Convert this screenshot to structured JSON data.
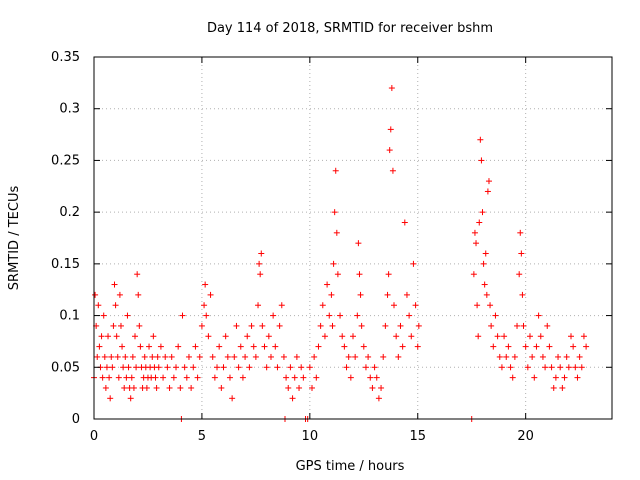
{
  "chart_data": {
    "type": "scatter",
    "title": "Day 114 of 2018, SRMTID for receiver bshm",
    "xlabel": "GPS time / hours",
    "ylabel": "SRMTID / TECUs",
    "xlim": [
      0,
      24
    ],
    "ylim": [
      0,
      0.35
    ],
    "xticks": [
      0,
      5,
      10,
      15,
      20
    ],
    "xtick_labels": [
      "0",
      "5",
      "10",
      "15",
      "20"
    ],
    "yticks": [
      0,
      0.05,
      0.1,
      0.15,
      0.2,
      0.25,
      0.3,
      0.35
    ],
    "ytick_labels": [
      "0",
      "0.05",
      "0.1",
      "0.15",
      "0.2",
      "0.25",
      "0.3",
      "0.35"
    ],
    "grid": true,
    "marker": "+",
    "series": [
      {
        "name": "SRMTID",
        "color": "#ff0000",
        "points": [
          [
            0.0,
            0.04
          ],
          [
            0.05,
            0.12
          ],
          [
            0.1,
            0.09
          ],
          [
            0.15,
            0.06
          ],
          [
            0.2,
            0.11
          ],
          [
            0.25,
            0.07
          ],
          [
            0.3,
            0.05
          ],
          [
            0.35,
            0.08
          ],
          [
            0.4,
            0.04
          ],
          [
            0.45,
            0.1
          ],
          [
            0.5,
            0.06
          ],
          [
            0.55,
            0.03
          ],
          [
            0.6,
            0.05
          ],
          [
            0.65,
            0.08
          ],
          [
            0.7,
            0.04
          ],
          [
            0.75,
            0.02
          ],
          [
            0.8,
            0.06
          ],
          [
            0.85,
            0.05
          ],
          [
            0.9,
            0.09
          ],
          [
            0.95,
            0.13
          ],
          [
            1.0,
            0.11
          ],
          [
            1.05,
            0.08
          ],
          [
            1.1,
            0.06
          ],
          [
            1.15,
            0.04
          ],
          [
            1.2,
            0.12
          ],
          [
            1.25,
            0.09
          ],
          [
            1.3,
            0.07
          ],
          [
            1.35,
            0.05
          ],
          [
            1.4,
            0.03
          ],
          [
            1.45,
            0.06
          ],
          [
            1.5,
            0.04
          ],
          [
            1.55,
            0.1
          ],
          [
            1.6,
            0.05
          ],
          [
            1.65,
            0.03
          ],
          [
            1.7,
            0.02
          ],
          [
            1.75,
            0.04
          ],
          [
            1.8,
            0.06
          ],
          [
            1.85,
            0.03
          ],
          [
            1.9,
            0.08
          ],
          [
            1.95,
            0.05
          ],
          [
            2.0,
            0.14
          ],
          [
            2.05,
            0.12
          ],
          [
            2.1,
            0.09
          ],
          [
            2.15,
            0.07
          ],
          [
            2.2,
            0.05
          ],
          [
            2.25,
            0.03
          ],
          [
            2.3,
            0.04
          ],
          [
            2.35,
            0.06
          ],
          [
            2.4,
            0.05
          ],
          [
            2.45,
            0.03
          ],
          [
            2.5,
            0.04
          ],
          [
            2.55,
            0.07
          ],
          [
            2.6,
            0.05
          ],
          [
            2.65,
            0.04
          ],
          [
            2.7,
            0.06
          ],
          [
            2.75,
            0.08
          ],
          [
            2.8,
            0.05
          ],
          [
            2.85,
            0.04
          ],
          [
            2.9,
            0.03
          ],
          [
            2.95,
            0.06
          ],
          [
            3.0,
            0.05
          ],
          [
            3.1,
            0.07
          ],
          [
            3.2,
            0.04
          ],
          [
            3.3,
            0.06
          ],
          [
            3.4,
            0.05
          ],
          [
            3.5,
            0.03
          ],
          [
            3.6,
            0.06
          ],
          [
            3.7,
            0.04
          ],
          [
            3.8,
            0.05
          ],
          [
            3.9,
            0.07
          ],
          [
            4.0,
            0.03
          ],
          [
            4.05,
            0.0
          ],
          [
            4.1,
            0.1
          ],
          [
            4.2,
            0.05
          ],
          [
            4.3,
            0.04
          ],
          [
            4.4,
            0.06
          ],
          [
            4.5,
            0.03
          ],
          [
            4.6,
            0.05
          ],
          [
            4.7,
            0.07
          ],
          [
            4.8,
            0.04
          ],
          [
            4.9,
            0.06
          ],
          [
            5.0,
            0.09
          ],
          [
            5.1,
            0.11
          ],
          [
            5.15,
            0.13
          ],
          [
            5.2,
            0.1
          ],
          [
            5.3,
            0.08
          ],
          [
            5.4,
            0.12
          ],
          [
            5.5,
            0.06
          ],
          [
            5.6,
            0.04
          ],
          [
            5.7,
            0.05
          ],
          [
            5.8,
            0.07
          ],
          [
            5.9,
            0.03
          ],
          [
            6.0,
            0.05
          ],
          [
            6.1,
            0.08
          ],
          [
            6.2,
            0.06
          ],
          [
            6.3,
            0.04
          ],
          [
            6.4,
            0.02
          ],
          [
            6.5,
            0.06
          ],
          [
            6.6,
            0.09
          ],
          [
            6.7,
            0.05
          ],
          [
            6.8,
            0.07
          ],
          [
            6.9,
            0.04
          ],
          [
            7.0,
            0.06
          ],
          [
            7.1,
            0.08
          ],
          [
            7.2,
            0.05
          ],
          [
            7.3,
            0.09
          ],
          [
            7.4,
            0.07
          ],
          [
            7.5,
            0.06
          ],
          [
            7.6,
            0.11
          ],
          [
            7.65,
            0.15
          ],
          [
            7.7,
            0.14
          ],
          [
            7.75,
            0.16
          ],
          [
            7.8,
            0.09
          ],
          [
            7.9,
            0.07
          ],
          [
            8.0,
            0.05
          ],
          [
            8.1,
            0.08
          ],
          [
            8.2,
            0.06
          ],
          [
            8.3,
            0.1
          ],
          [
            8.4,
            0.07
          ],
          [
            8.5,
            0.05
          ],
          [
            8.6,
            0.09
          ],
          [
            8.7,
            0.11
          ],
          [
            8.8,
            0.06
          ],
          [
            8.85,
            0.0
          ],
          [
            8.9,
            0.04
          ],
          [
            9.0,
            0.03
          ],
          [
            9.1,
            0.05
          ],
          [
            9.2,
            0.02
          ],
          [
            9.3,
            0.04
          ],
          [
            9.4,
            0.06
          ],
          [
            9.5,
            0.03
          ],
          [
            9.6,
            0.05
          ],
          [
            9.7,
            0.04
          ],
          [
            9.8,
            0.0
          ],
          [
            9.9,
            0.0
          ],
          [
            10.0,
            0.05
          ],
          [
            10.1,
            0.03
          ],
          [
            10.2,
            0.06
          ],
          [
            10.3,
            0.04
          ],
          [
            10.4,
            0.07
          ],
          [
            10.5,
            0.09
          ],
          [
            10.6,
            0.11
          ],
          [
            10.7,
            0.08
          ],
          [
            10.8,
            0.13
          ],
          [
            10.9,
            0.1
          ],
          [
            11.0,
            0.12
          ],
          [
            11.05,
            0.09
          ],
          [
            11.1,
            0.15
          ],
          [
            11.15,
            0.2
          ],
          [
            11.2,
            0.24
          ],
          [
            11.25,
            0.18
          ],
          [
            11.3,
            0.14
          ],
          [
            11.4,
            0.1
          ],
          [
            11.5,
            0.08
          ],
          [
            11.6,
            0.07
          ],
          [
            11.7,
            0.05
          ],
          [
            11.8,
            0.06
          ],
          [
            11.9,
            0.04
          ],
          [
            12.0,
            0.08
          ],
          [
            12.1,
            0.06
          ],
          [
            12.2,
            0.1
          ],
          [
            12.25,
            0.17
          ],
          [
            12.3,
            0.14
          ],
          [
            12.35,
            0.12
          ],
          [
            12.4,
            0.09
          ],
          [
            12.5,
            0.07
          ],
          [
            12.6,
            0.05
          ],
          [
            12.7,
            0.06
          ],
          [
            12.8,
            0.04
          ],
          [
            12.9,
            0.03
          ],
          [
            13.0,
            0.05
          ],
          [
            13.1,
            0.04
          ],
          [
            13.2,
            0.02
          ],
          [
            13.3,
            0.03
          ],
          [
            13.4,
            0.06
          ],
          [
            13.5,
            0.09
          ],
          [
            13.6,
            0.12
          ],
          [
            13.65,
            0.14
          ],
          [
            13.7,
            0.26
          ],
          [
            13.75,
            0.28
          ],
          [
            13.8,
            0.32
          ],
          [
            13.85,
            0.24
          ],
          [
            13.9,
            0.11
          ],
          [
            14.0,
            0.08
          ],
          [
            14.1,
            0.06
          ],
          [
            14.2,
            0.09
          ],
          [
            14.3,
            0.07
          ],
          [
            14.4,
            0.19
          ],
          [
            14.5,
            0.12
          ],
          [
            14.6,
            0.1
          ],
          [
            14.7,
            0.08
          ],
          [
            14.8,
            0.15
          ],
          [
            14.9,
            0.11
          ],
          [
            15.0,
            0.07
          ],
          [
            15.05,
            0.09
          ],
          [
            17.5,
            0.0
          ],
          [
            17.6,
            0.14
          ],
          [
            17.65,
            0.18
          ],
          [
            17.7,
            0.17
          ],
          [
            17.75,
            0.11
          ],
          [
            17.8,
            0.08
          ],
          [
            17.85,
            0.19
          ],
          [
            17.9,
            0.27
          ],
          [
            17.95,
            0.25
          ],
          [
            18.0,
            0.2
          ],
          [
            18.05,
            0.15
          ],
          [
            18.1,
            0.13
          ],
          [
            18.15,
            0.16
          ],
          [
            18.2,
            0.12
          ],
          [
            18.25,
            0.22
          ],
          [
            18.3,
            0.23
          ],
          [
            18.35,
            0.11
          ],
          [
            18.4,
            0.09
          ],
          [
            18.5,
            0.07
          ],
          [
            18.6,
            0.1
          ],
          [
            18.7,
            0.08
          ],
          [
            18.8,
            0.06
          ],
          [
            18.9,
            0.05
          ],
          [
            19.0,
            0.08
          ],
          [
            19.1,
            0.06
          ],
          [
            19.2,
            0.07
          ],
          [
            19.3,
            0.05
          ],
          [
            19.4,
            0.04
          ],
          [
            19.5,
            0.06
          ],
          [
            19.6,
            0.09
          ],
          [
            19.7,
            0.14
          ],
          [
            19.75,
            0.18
          ],
          [
            19.8,
            0.16
          ],
          [
            19.85,
            0.12
          ],
          [
            19.9,
            0.09
          ],
          [
            20.0,
            0.07
          ],
          [
            20.1,
            0.05
          ],
          [
            20.2,
            0.08
          ],
          [
            20.3,
            0.06
          ],
          [
            20.4,
            0.04
          ],
          [
            20.5,
            0.07
          ],
          [
            20.6,
            0.1
          ],
          [
            20.7,
            0.08
          ],
          [
            20.8,
            0.06
          ],
          [
            20.9,
            0.05
          ],
          [
            21.0,
            0.09
          ],
          [
            21.1,
            0.07
          ],
          [
            21.2,
            0.05
          ],
          [
            21.3,
            0.03
          ],
          [
            21.4,
            0.04
          ],
          [
            21.5,
            0.06
          ],
          [
            21.6,
            0.05
          ],
          [
            21.7,
            0.03
          ],
          [
            21.8,
            0.04
          ],
          [
            21.9,
            0.06
          ],
          [
            22.0,
            0.05
          ],
          [
            22.1,
            0.08
          ],
          [
            22.2,
            0.07
          ],
          [
            22.3,
            0.05
          ],
          [
            22.4,
            0.04
          ],
          [
            22.5,
            0.06
          ],
          [
            22.6,
            0.05
          ],
          [
            22.7,
            0.08
          ],
          [
            22.8,
            0.07
          ]
        ]
      }
    ]
  }
}
